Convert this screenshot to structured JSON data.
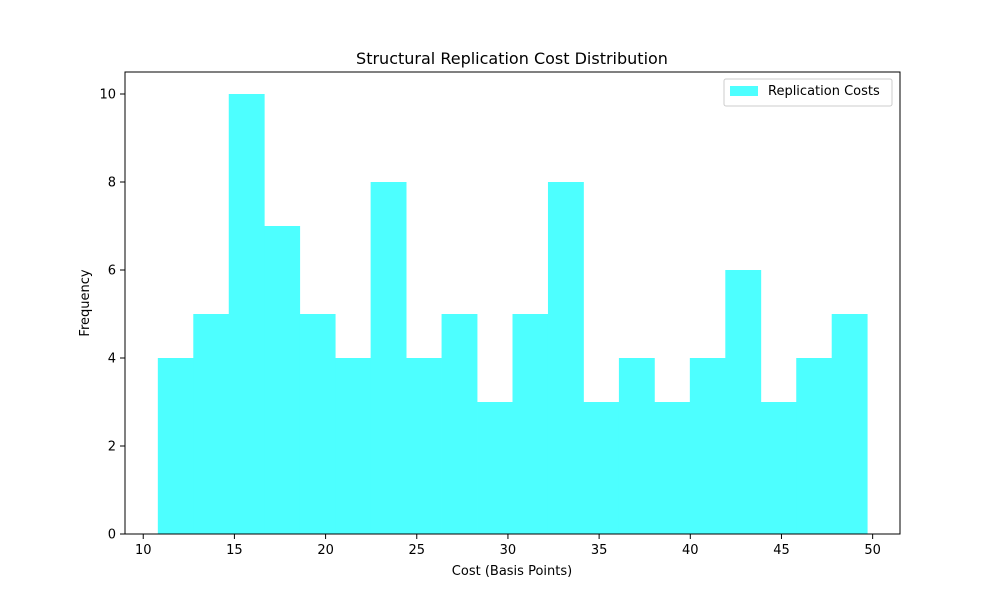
{
  "chart_data": {
    "type": "bar",
    "title": "Structural Replication Cost Distribution",
    "xlabel": "Cost (Basis Points)",
    "ylabel": "Frequency",
    "xlim": [
      9.0,
      51.5
    ],
    "ylim": [
      0,
      10.5
    ],
    "xticks": [
      10,
      15,
      20,
      25,
      30,
      35,
      40,
      45,
      50
    ],
    "yticks": [
      0,
      2,
      4,
      6,
      8,
      10
    ],
    "bin_edges": [
      10.8,
      12.745,
      14.69,
      16.635,
      18.58,
      20.525,
      22.47,
      24.415,
      26.36,
      28.305,
      30.25,
      32.195,
      34.14,
      36.085,
      38.03,
      39.975,
      41.92,
      43.865,
      45.81,
      47.755,
      49.7
    ],
    "series": [
      {
        "name": "Replication Costs",
        "values": [
          4,
          5,
          10,
          7,
          5,
          4,
          8,
          4,
          5,
          3,
          5,
          8,
          3,
          4,
          3,
          4,
          6,
          3,
          4,
          5
        ],
        "color": "#4dffff"
      }
    ],
    "legend": {
      "position": "top-right"
    },
    "grid": false
  }
}
